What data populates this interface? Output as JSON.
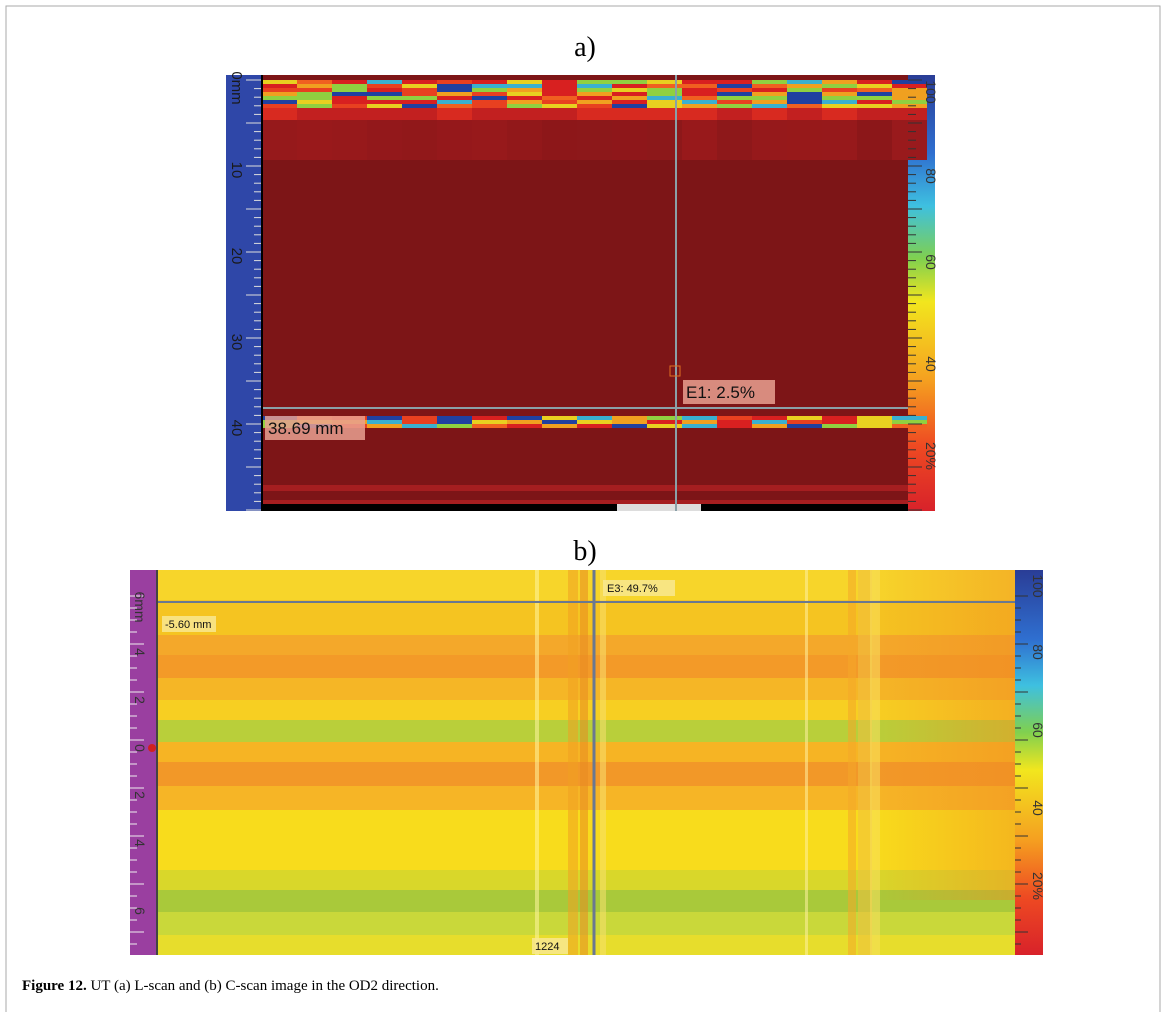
{
  "figure_a": {
    "label": "a)",
    "ruler_labels": [
      "0mm",
      "10",
      "20",
      "30",
      "40"
    ],
    "colorbar_labels": [
      "100",
      "80",
      "60",
      "40",
      "20%"
    ],
    "cursor_depth": "38.69 mm",
    "cursor_amplitude": "E1: 2.5%"
  },
  "figure_b": {
    "label": "b)",
    "ruler_labels": [
      "6mm",
      "4",
      "2",
      "0",
      "2",
      "4",
      "6"
    ],
    "colorbar_labels": [
      "100",
      "80",
      "60",
      "40",
      "20%"
    ],
    "cursor_amplitude": "E3: 49.7%",
    "cursor_offset": "-5.60 mm",
    "scan_index": "1224"
  },
  "caption": {
    "label": "Figure 12.",
    "text": "UT (a) L-scan and (b) C-scan image in the OD2 direction."
  }
}
